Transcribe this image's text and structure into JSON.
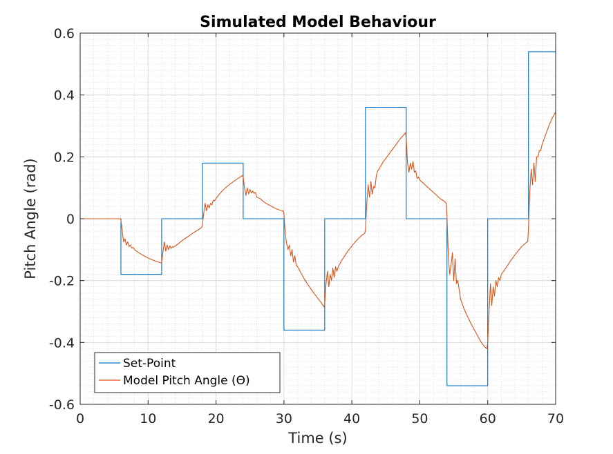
{
  "chart_data": {
    "type": "line",
    "title": "Simulated Model Behaviour",
    "xlabel": "Time (s)",
    "ylabel": "Pitch Angle (rad)",
    "xlim": [
      0,
      70
    ],
    "ylim": [
      -0.6,
      0.6
    ],
    "xticks": [
      0,
      10,
      20,
      30,
      40,
      50,
      60,
      70
    ],
    "xtick_labels": [
      "0",
      "10",
      "20",
      "30",
      "40",
      "50",
      "60",
      "70"
    ],
    "yticks": [
      -0.6,
      -0.4,
      -0.2,
      0,
      0.2,
      0.4,
      0.6
    ],
    "ytick_labels": [
      "-0.6",
      "-0.4",
      "-0.2",
      "0",
      "0.2",
      "0.4",
      "0.6"
    ],
    "grid": true,
    "minor_grid": true,
    "legend_location": "bottom-left",
    "series": [
      {
        "name": "Set-Point",
        "color": "#0072BD",
        "step": true,
        "x": [
          0,
          6,
          6,
          12,
          12,
          18,
          18,
          24,
          24,
          30,
          30,
          36,
          36,
          42,
          42,
          48,
          48,
          54,
          54,
          60,
          60,
          66,
          66,
          70
        ],
        "y": [
          0,
          0,
          -0.18,
          -0.18,
          0,
          0,
          0.18,
          0.18,
          0,
          0,
          -0.36,
          -0.36,
          0,
          0,
          0.36,
          0.36,
          0,
          0,
          -0.54,
          -0.54,
          0,
          0,
          0.54,
          0.54
        ]
      },
      {
        "name": "Model Pitch Angle (Θ)",
        "color": "#D95319",
        "x": [
          0,
          5.9,
          6.0,
          6.2,
          6.4,
          6.6,
          6.8,
          7.0,
          7.2,
          7.4,
          7.6,
          7.8,
          8.0,
          8.5,
          9,
          9.5,
          10,
          10.5,
          11,
          11.5,
          11.9,
          12.0,
          12.2,
          12.4,
          12.6,
          12.8,
          13.0,
          13.2,
          13.4,
          13.6,
          13.8,
          14,
          14.5,
          15,
          15.5,
          16,
          16.5,
          17,
          17.5,
          17.9,
          18.0,
          18.2,
          18.4,
          18.6,
          18.8,
          19.0,
          19.2,
          19.4,
          19.6,
          19.8,
          20,
          20.5,
          21,
          21.5,
          22,
          22.5,
          23,
          23.5,
          23.9,
          24.0,
          24.2,
          24.4,
          24.6,
          24.8,
          25.0,
          25.2,
          25.4,
          25.6,
          25.8,
          26,
          26.5,
          27,
          27.5,
          28,
          28.5,
          29,
          29.5,
          29.9,
          30.0,
          30.2,
          30.4,
          30.6,
          30.8,
          31.0,
          31.2,
          31.4,
          31.6,
          31.8,
          32,
          32.5,
          33,
          33.5,
          34,
          34.5,
          35,
          35.5,
          35.9,
          36.0,
          36.2,
          36.4,
          36.6,
          36.8,
          37.0,
          37.2,
          37.4,
          37.6,
          37.8,
          38,
          38.5,
          39,
          39.5,
          40,
          40.5,
          41,
          41.5,
          41.9,
          42.0,
          42.2,
          42.4,
          42.6,
          42.8,
          43.0,
          43.2,
          43.4,
          43.6,
          43.8,
          44,
          44.5,
          45,
          45.5,
          46,
          46.5,
          47,
          47.5,
          47.9,
          48.0,
          48.2,
          48.4,
          48.6,
          48.8,
          49.0,
          49.2,
          49.4,
          49.6,
          49.8,
          50,
          50.5,
          51,
          51.5,
          52,
          52.5,
          53,
          53.5,
          53.9,
          54.0,
          54.2,
          54.4,
          54.6,
          54.8,
          55.0,
          55.2,
          55.4,
          55.6,
          55.8,
          56,
          56.5,
          57,
          57.5,
          58,
          58.5,
          59,
          59.5,
          59.9,
          60.0,
          60.2,
          60.4,
          60.6,
          60.8,
          61.0,
          61.2,
          61.4,
          61.6,
          61.8,
          62,
          62.5,
          63,
          63.5,
          64,
          64.5,
          65,
          65.5,
          65.9,
          66.0,
          66.2,
          66.4,
          66.6,
          66.8,
          67.0,
          67.2,
          67.4,
          67.6,
          67.8,
          68,
          68.5,
          69,
          69.5,
          70
        ],
        "y": [
          0,
          0,
          -0.005,
          -0.04,
          -0.075,
          -0.065,
          -0.085,
          -0.075,
          -0.09,
          -0.085,
          -0.095,
          -0.093,
          -0.1,
          -0.108,
          -0.115,
          -0.121,
          -0.127,
          -0.132,
          -0.136,
          -0.14,
          -0.143,
          -0.14,
          -0.105,
          -0.075,
          -0.105,
          -0.085,
          -0.1,
          -0.088,
          -0.096,
          -0.09,
          -0.092,
          -0.088,
          -0.08,
          -0.071,
          -0.063,
          -0.056,
          -0.048,
          -0.041,
          -0.034,
          -0.028,
          -0.02,
          0.02,
          0.05,
          0.025,
          0.045,
          0.035,
          0.05,
          0.045,
          0.06,
          0.058,
          0.065,
          0.08,
          0.092,
          0.102,
          0.111,
          0.119,
          0.127,
          0.134,
          0.14,
          0.135,
          0.1,
          0.075,
          0.1,
          0.08,
          0.095,
          0.083,
          0.09,
          0.082,
          0.085,
          0.07,
          0.065,
          0.055,
          0.048,
          0.042,
          0.036,
          0.031,
          0.027,
          0.025,
          0.015,
          -0.05,
          -0.08,
          -0.1,
          -0.085,
          -0.12,
          -0.1,
          -0.14,
          -0.12,
          -0.15,
          -0.155,
          -0.175,
          -0.195,
          -0.212,
          -0.228,
          -0.243,
          -0.258,
          -0.272,
          -0.285,
          -0.275,
          -0.21,
          -0.17,
          -0.22,
          -0.18,
          -0.2,
          -0.16,
          -0.19,
          -0.155,
          -0.17,
          -0.155,
          -0.135,
          -0.118,
          -0.102,
          -0.088,
          -0.075,
          -0.063,
          -0.053,
          -0.047,
          -0.035,
          0.05,
          0.11,
          0.07,
          0.12,
          0.08,
          0.105,
          0.1,
          0.14,
          0.155,
          0.16,
          0.18,
          0.195,
          0.21,
          0.225,
          0.24,
          0.255,
          0.268,
          0.278,
          0.26,
          0.18,
          0.15,
          0.18,
          0.16,
          0.185,
          0.15,
          0.155,
          0.13,
          0.135,
          0.125,
          0.115,
          0.105,
          0.095,
          0.085,
          0.075,
          0.065,
          0.058,
          0.05,
          0.01,
          -0.12,
          -0.18,
          -0.15,
          -0.11,
          -0.2,
          -0.13,
          -0.21,
          -0.2,
          -0.23,
          -0.26,
          -0.29,
          -0.315,
          -0.338,
          -0.358,
          -0.378,
          -0.398,
          -0.413,
          -0.42,
          -0.4,
          -0.3,
          -0.21,
          -0.28,
          -0.22,
          -0.25,
          -0.2,
          -0.22,
          -0.19,
          -0.2,
          -0.18,
          -0.165,
          -0.148,
          -0.132,
          -0.117,
          -0.103,
          -0.09,
          -0.08,
          -0.073,
          -0.03,
          0.09,
          0.16,
          0.11,
          0.18,
          0.12,
          0.2,
          0.2,
          0.22,
          0.22,
          0.24,
          0.27,
          0.3,
          0.325,
          0.345
        ]
      }
    ]
  }
}
